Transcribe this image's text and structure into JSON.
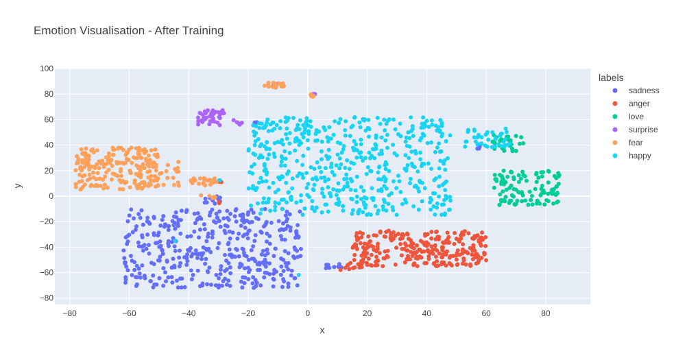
{
  "chart_data": {
    "type": "scatter",
    "title": "Emotion Visualisation - After Training",
    "xlabel": "x",
    "ylabel": "y",
    "xlim": [
      -85,
      95
    ],
    "ylim": [
      -85,
      100
    ],
    "xticks": [
      -80,
      -60,
      -40,
      -20,
      0,
      20,
      40,
      60,
      80
    ],
    "yticks": [
      -80,
      -60,
      -40,
      -20,
      0,
      20,
      40,
      60,
      80,
      100
    ],
    "grid": true,
    "legend_title": "labels",
    "legend_position": "right",
    "series": [
      {
        "name": "sadness",
        "color": "#636efa",
        "clusters": [
          {
            "x_range": [
              -62,
              -2
            ],
            "y_range": [
              -72,
              -10
            ],
            "n": 420
          },
          {
            "x_range": [
              -36,
              -29
            ],
            "y_range": [
              -6,
              0
            ],
            "n": 12
          },
          {
            "x_range": [
              6,
              13
            ],
            "y_range": [
              -57,
              -53
            ],
            "n": 10
          },
          {
            "x_range": [
              57,
              60
            ],
            "y_range": [
              37,
              41
            ],
            "n": 5
          },
          {
            "x_range": [
              -13,
              -10
            ],
            "y_range": [
              85,
              89
            ],
            "n": 3
          },
          {
            "x_range": [
              -19,
              -17
            ],
            "y_range": [
              55,
              58
            ],
            "n": 3
          }
        ]
      },
      {
        "name": "anger",
        "color": "#ef553b",
        "clusters": [
          {
            "x_range": [
              15,
              60
            ],
            "y_range": [
              -55,
              -27
            ],
            "n": 280
          },
          {
            "x_range": [
              11,
              20
            ],
            "y_range": [
              -58,
              -52
            ],
            "n": 12
          },
          {
            "x_range": [
              -31,
              -29
            ],
            "y_range": [
              11,
              14
            ],
            "n": 4
          },
          {
            "x_range": [
              -30,
              -29
            ],
            "y_range": [
              -6,
              -4
            ],
            "n": 2
          }
        ]
      },
      {
        "name": "love",
        "color": "#00cc96",
        "clusters": [
          {
            "x_range": [
              62,
              85
            ],
            "y_range": [
              -7,
              20
            ],
            "n": 110
          },
          {
            "x_range": [
              62,
              73
            ],
            "y_range": [
              35,
              48
            ],
            "n": 30
          }
        ]
      },
      {
        "name": "surprise",
        "color": "#ab63fa",
        "clusters": [
          {
            "x_range": [
              -37,
              -28
            ],
            "y_range": [
              55,
              68
            ],
            "n": 45
          },
          {
            "x_range": [
              -25,
              -21
            ],
            "y_range": [
              56,
              60
            ],
            "n": 6
          },
          {
            "x_range": [
              1,
              3
            ],
            "y_range": [
              78,
              82
            ],
            "n": 5
          }
        ]
      },
      {
        "name": "fear",
        "color": "#ffa15a",
        "clusters": [
          {
            "x_range": [
              -78,
              -50
            ],
            "y_range": [
              5,
              38
            ],
            "n": 200
          },
          {
            "x_range": [
              -57,
              -43
            ],
            "y_range": [
              8,
              27
            ],
            "n": 30
          },
          {
            "x_range": [
              -40,
              -30
            ],
            "y_range": [
              8,
              14
            ],
            "n": 25
          },
          {
            "x_range": [
              -15,
              -8
            ],
            "y_range": [
              85,
              89
            ],
            "n": 20
          },
          {
            "x_range": [
              0,
              2
            ],
            "y_range": [
              77,
              80
            ],
            "n": 6
          },
          {
            "x_range": [
              -36,
              -31
            ],
            "y_range": [
              -2,
              1
            ],
            "n": 6
          }
        ]
      },
      {
        "name": "happy",
        "color": "#19d3f3",
        "clusters": [
          {
            "x_range": [
              -20,
              48
            ],
            "y_range": [
              -15,
              62
            ],
            "n": 520
          },
          {
            "x_range": [
              -17,
              -14
            ],
            "y_range": [
              52,
              57
            ],
            "n": 5
          },
          {
            "x_range": [
              52,
              68
            ],
            "y_range": [
              38,
              53
            ],
            "n": 40
          },
          {
            "x_range": [
              -45,
              -44
            ],
            "y_range": [
              -36,
              -34
            ],
            "n": 1
          },
          {
            "x_range": [
              -4,
              -3
            ],
            "y_range": [
              -63,
              -61
            ],
            "n": 1
          },
          {
            "x_range": [
              -30,
              -29
            ],
            "y_range": [
              12,
              14
            ],
            "n": 1
          }
        ]
      }
    ]
  }
}
